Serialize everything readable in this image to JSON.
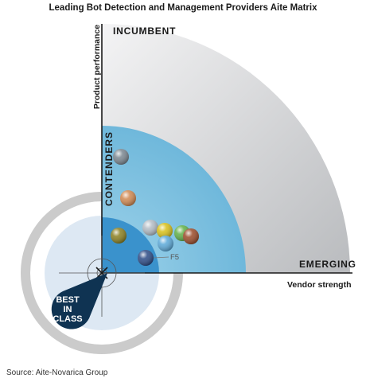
{
  "title": "Leading Bot Detection and Management Providers Aite Matrix",
  "axes": {
    "y_label": "Product performance",
    "x_label": "Vendor strength"
  },
  "zones": {
    "incumbent": "INCUMBENT",
    "contenders": "CONTENDERS",
    "emerging": "EMERGING"
  },
  "badge": {
    "lines": [
      "BEST",
      "IN",
      "CLASS"
    ]
  },
  "vendor_label": "F5",
  "source": "Source: Aite-Novarica Group",
  "colors": {
    "incumbent_zone": "#d3d4d6",
    "contenders_zone": "#7cc1df",
    "best_zone": "#3a95cf",
    "ring": "#c8c8c8",
    "badge": "#0f3352"
  },
  "vendors": [
    {
      "color": "#7a8690"
    },
    {
      "color": "#d08850"
    },
    {
      "color": "#b3bcc5"
    },
    {
      "color": "#d8c018"
    },
    {
      "color": "#60b048"
    },
    {
      "color": "#9a4a28"
    },
    {
      "color": "#8a7f20"
    },
    {
      "color": "#5aa8d8"
    },
    {
      "color": "#2b4a85"
    }
  ]
}
